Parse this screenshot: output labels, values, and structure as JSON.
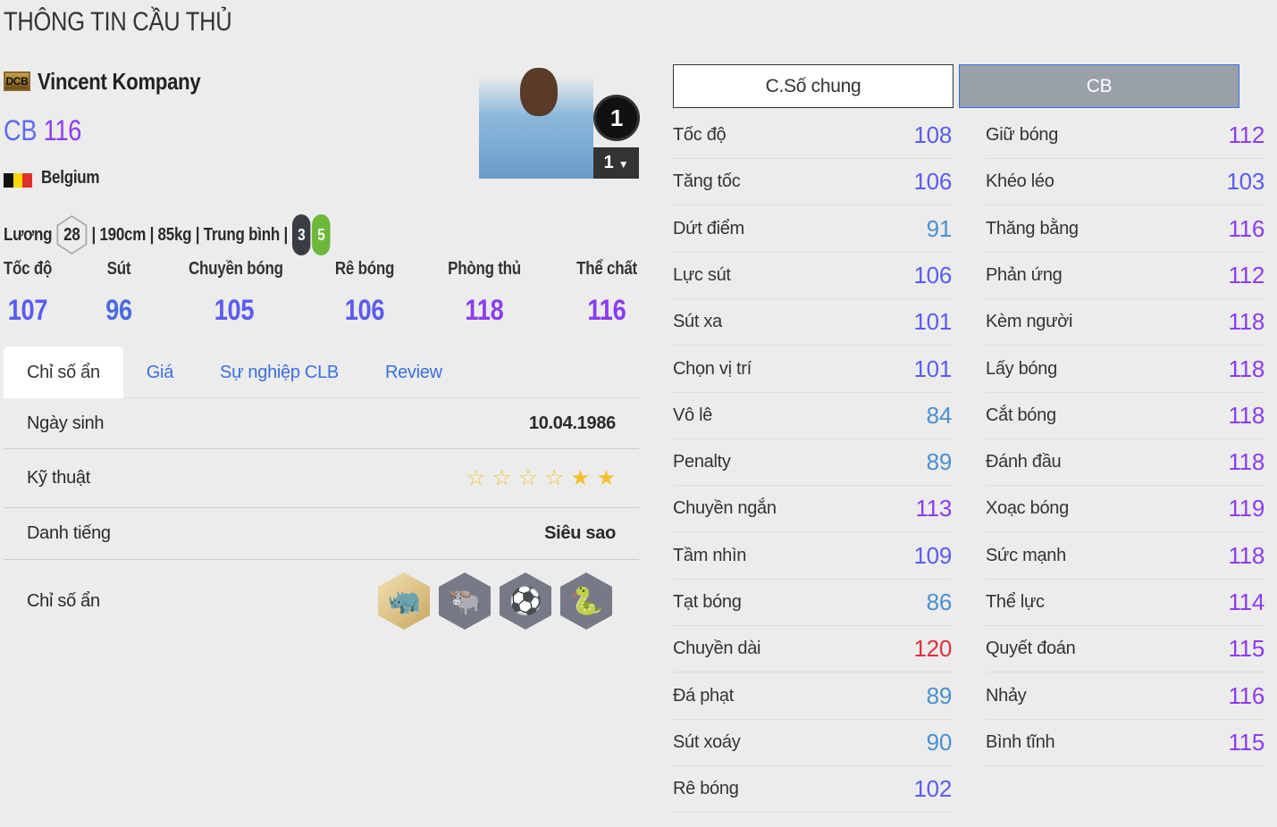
{
  "title": "THÔNG TIN CẦU THỦ",
  "player": {
    "season_badge": "DCB",
    "name": "Vincent Kompany",
    "position": "CB",
    "ovr": "116",
    "flag_colors": [
      "#111111",
      "#f5d800",
      "#e0302a"
    ],
    "country": "Belgium",
    "salary_label": "Lương",
    "salary": "28",
    "details": "| 190cm | 85kg | Trung bình |",
    "left_foot": "3",
    "right_foot": "5",
    "level": "1",
    "level_select": "1"
  },
  "main_stats": [
    {
      "label": "Tốc độ",
      "value": "107"
    },
    {
      "label": "Sút",
      "value": "96"
    },
    {
      "label": "Chuyền bóng",
      "value": "105"
    },
    {
      "label": "Rê bóng",
      "value": "106"
    },
    {
      "label": "Phòng thủ",
      "value": "118"
    },
    {
      "label": "Thể chất",
      "value": "116"
    }
  ],
  "tabs": [
    "Chỉ số ẩn",
    "Giá",
    "Sự nghiệp CLB",
    "Review"
  ],
  "info": {
    "birth_label": "Ngày sinh",
    "birth": "10.04.1986",
    "skill_label": "Kỹ thuật",
    "skill_stars": 2,
    "skill_max": 6,
    "fame_label": "Danh tiếng",
    "fame": "Siêu sao",
    "traits_label": "Chỉ số ẩn",
    "traits": [
      "rhino-icon",
      "buffalo-icon",
      "long-shot-icon",
      "snake-icon"
    ]
  },
  "buttons": {
    "general": "C.Số chung",
    "position": "CB"
  },
  "stats_left": [
    [
      "Tốc độ",
      108
    ],
    [
      "Tăng tốc",
      106
    ],
    [
      "Dứt điểm",
      91
    ],
    [
      "Lực sút",
      106
    ],
    [
      "Sút xa",
      101
    ],
    [
      "Chọn vị trí",
      101
    ],
    [
      "Vô lê",
      84
    ],
    [
      "Penalty",
      89
    ],
    [
      "Chuyền ngắn",
      113
    ],
    [
      "Tầm nhìn",
      109
    ],
    [
      "Tạt bóng",
      86
    ],
    [
      "Chuyền dài",
      120
    ],
    [
      "Đá phạt",
      89
    ],
    [
      "Sút xoáy",
      90
    ],
    [
      "Rê bóng",
      102
    ]
  ],
  "stats_right": [
    [
      "Giữ bóng",
      112
    ],
    [
      "Khéo léo",
      103
    ],
    [
      "Thăng bằng",
      116
    ],
    [
      "Phản ứng",
      112
    ],
    [
      "Kèm người",
      118
    ],
    [
      "Lấy bóng",
      118
    ],
    [
      "Cắt bóng",
      118
    ],
    [
      "Đánh đầu",
      118
    ],
    [
      "Xoạc bóng",
      119
    ],
    [
      "Sức mạnh",
      118
    ],
    [
      "Thể lực",
      114
    ],
    [
      "Quyết đoán",
      115
    ],
    [
      "Nhảy",
      116
    ],
    [
      "Bình tĩnh",
      115
    ]
  ],
  "value_colors": {
    "below_100": "#4a90d0",
    "100_109": "#5a5cf0",
    "110_119": "#8b3cf0",
    "120_plus": "#e0303a"
  }
}
